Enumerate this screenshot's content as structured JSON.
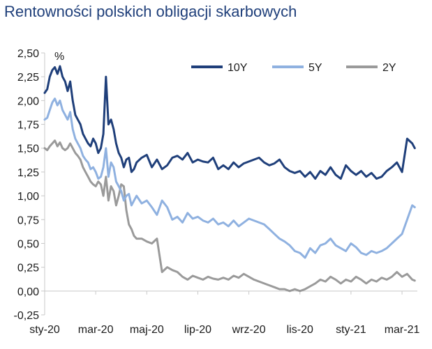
{
  "chart_data": {
    "type": "line",
    "title": "Rentowności polskich obligacji skarbowych",
    "unit": "%",
    "xlabel": "",
    "ylabel": "%",
    "ylim": [
      -0.25,
      2.5
    ],
    "yticks": [
      "2,50",
      "2,25",
      "2,00",
      "1,75",
      "1,50",
      "1,25",
      "1,00",
      "0,75",
      "0,50",
      "0,25",
      "0,00",
      "-0,25"
    ],
    "ytick_values": [
      2.5,
      2.25,
      2.0,
      1.75,
      1.5,
      1.25,
      1.0,
      0.75,
      0.5,
      0.25,
      0.0,
      -0.25
    ],
    "xticks": [
      "sty-20",
      "mar-20",
      "maj-20",
      "lip-20",
      "wrz-20",
      "lis-20",
      "sty-21",
      "mar-21"
    ],
    "xtick_positions": [
      0,
      2,
      4,
      6,
      8,
      10,
      12,
      14
    ],
    "xlim": [
      0,
      14.6
    ],
    "legend_position": "top-right",
    "grid": false,
    "series": [
      {
        "name": "10Y",
        "color": "#1f3f7a",
        "x": [
          0,
          0.1,
          0.2,
          0.3,
          0.4,
          0.5,
          0.6,
          0.7,
          0.8,
          0.9,
          1.0,
          1.1,
          1.2,
          1.3,
          1.4,
          1.5,
          1.6,
          1.7,
          1.8,
          1.9,
          2.0,
          2.1,
          2.2,
          2.3,
          2.4,
          2.5,
          2.6,
          2.7,
          2.8,
          2.9,
          3.0,
          3.1,
          3.2,
          3.3,
          3.4,
          3.5,
          3.6,
          3.8,
          4.0,
          4.2,
          4.4,
          4.6,
          4.8,
          5.0,
          5.2,
          5.4,
          5.6,
          5.8,
          6.0,
          6.2,
          6.4,
          6.6,
          6.8,
          7.0,
          7.2,
          7.4,
          7.6,
          7.8,
          8.0,
          8.2,
          8.4,
          8.6,
          8.8,
          9.0,
          9.2,
          9.4,
          9.6,
          9.8,
          10.0,
          10.2,
          10.4,
          10.6,
          10.8,
          11.0,
          11.2,
          11.4,
          11.6,
          11.8,
          12.0,
          12.2,
          12.4,
          12.6,
          12.8,
          13.0,
          13.2,
          13.4,
          13.6,
          13.8,
          14.0,
          14.2,
          14.4,
          14.5
        ],
        "values": [
          2.08,
          2.12,
          2.25,
          2.32,
          2.35,
          2.28,
          2.36,
          2.25,
          2.2,
          2.1,
          2.2,
          2.0,
          1.85,
          1.8,
          1.75,
          1.65,
          1.6,
          1.55,
          1.52,
          1.6,
          1.55,
          1.45,
          1.5,
          1.65,
          2.25,
          1.75,
          1.8,
          1.7,
          1.55,
          1.45,
          1.4,
          1.3,
          1.38,
          1.4,
          1.25,
          1.28,
          1.35,
          1.4,
          1.43,
          1.3,
          1.38,
          1.28,
          1.32,
          1.4,
          1.42,
          1.38,
          1.45,
          1.35,
          1.38,
          1.36,
          1.35,
          1.4,
          1.28,
          1.32,
          1.28,
          1.35,
          1.3,
          1.34,
          1.36,
          1.38,
          1.4,
          1.35,
          1.32,
          1.34,
          1.38,
          1.3,
          1.26,
          1.24,
          1.26,
          1.2,
          1.25,
          1.18,
          1.26,
          1.22,
          1.3,
          1.22,
          1.18,
          1.32,
          1.26,
          1.22,
          1.26,
          1.2,
          1.24,
          1.18,
          1.2,
          1.26,
          1.3,
          1.35,
          1.25,
          1.6,
          1.55,
          1.5
        ]
      },
      {
        "name": "5Y",
        "color": "#8fb1e0",
        "x": [
          0,
          0.1,
          0.2,
          0.3,
          0.4,
          0.5,
          0.6,
          0.7,
          0.8,
          0.9,
          1.0,
          1.1,
          1.2,
          1.3,
          1.4,
          1.5,
          1.6,
          1.7,
          1.8,
          1.9,
          2.0,
          2.1,
          2.2,
          2.3,
          2.4,
          2.5,
          2.6,
          2.7,
          2.8,
          2.9,
          3.0,
          3.1,
          3.2,
          3.3,
          3.4,
          3.5,
          3.6,
          3.8,
          4.0,
          4.2,
          4.4,
          4.6,
          4.8,
          5.0,
          5.2,
          5.4,
          5.6,
          5.8,
          6.0,
          6.2,
          6.4,
          6.6,
          6.8,
          7.0,
          7.2,
          7.4,
          7.6,
          7.8,
          8.0,
          8.2,
          8.4,
          8.6,
          8.8,
          9.0,
          9.2,
          9.4,
          9.6,
          9.8,
          10.0,
          10.2,
          10.4,
          10.6,
          10.8,
          11.0,
          11.2,
          11.4,
          11.6,
          11.8,
          12.0,
          12.2,
          12.4,
          12.6,
          12.8,
          13.0,
          13.2,
          13.4,
          13.6,
          13.8,
          14.0,
          14.2,
          14.4,
          14.5
        ],
        "values": [
          1.8,
          1.82,
          1.9,
          1.98,
          2.02,
          1.95,
          2.0,
          1.9,
          1.85,
          1.8,
          1.88,
          1.7,
          1.6,
          1.55,
          1.5,
          1.42,
          1.38,
          1.35,
          1.28,
          1.3,
          1.25,
          1.18,
          1.2,
          1.3,
          1.5,
          1.2,
          1.35,
          1.3,
          1.15,
          1.1,
          1.05,
          0.95,
          1.0,
          1.02,
          0.9,
          0.95,
          1.0,
          0.92,
          0.95,
          0.88,
          0.8,
          0.95,
          0.88,
          0.75,
          0.78,
          0.72,
          0.82,
          0.76,
          0.78,
          0.74,
          0.72,
          0.76,
          0.7,
          0.72,
          0.68,
          0.74,
          0.68,
          0.72,
          0.76,
          0.74,
          0.72,
          0.7,
          0.65,
          0.6,
          0.55,
          0.52,
          0.48,
          0.42,
          0.4,
          0.35,
          0.45,
          0.4,
          0.48,
          0.5,
          0.55,
          0.48,
          0.45,
          0.42,
          0.5,
          0.46,
          0.4,
          0.38,
          0.42,
          0.4,
          0.42,
          0.45,
          0.5,
          0.55,
          0.6,
          0.75,
          0.9,
          0.88
        ]
      },
      {
        "name": "2Y",
        "color": "#9a9a9a",
        "x": [
          0,
          0.1,
          0.2,
          0.3,
          0.4,
          0.5,
          0.6,
          0.7,
          0.8,
          0.9,
          1.0,
          1.1,
          1.2,
          1.3,
          1.4,
          1.5,
          1.6,
          1.7,
          1.8,
          1.9,
          2.0,
          2.1,
          2.2,
          2.3,
          2.4,
          2.5,
          2.6,
          2.7,
          2.8,
          2.9,
          3.0,
          3.1,
          3.2,
          3.3,
          3.4,
          3.5,
          3.6,
          3.8,
          4.0,
          4.2,
          4.4,
          4.6,
          4.8,
          5.0,
          5.2,
          5.4,
          5.6,
          5.8,
          6.0,
          6.2,
          6.4,
          6.6,
          6.8,
          7.0,
          7.2,
          7.4,
          7.6,
          7.8,
          8.0,
          8.2,
          8.4,
          8.6,
          8.8,
          9.0,
          9.2,
          9.4,
          9.6,
          9.8,
          10.0,
          10.2,
          10.4,
          10.6,
          10.8,
          11.0,
          11.2,
          11.4,
          11.6,
          11.8,
          12.0,
          12.2,
          12.4,
          12.6,
          12.8,
          13.0,
          13.2,
          13.4,
          13.6,
          13.8,
          14.0,
          14.2,
          14.4,
          14.5
        ],
        "values": [
          1.5,
          1.48,
          1.52,
          1.55,
          1.58,
          1.52,
          1.56,
          1.5,
          1.48,
          1.5,
          1.55,
          1.5,
          1.45,
          1.42,
          1.38,
          1.3,
          1.25,
          1.2,
          1.15,
          1.12,
          1.1,
          1.15,
          1.12,
          1.0,
          1.2,
          0.95,
          1.1,
          1.05,
          0.9,
          1.0,
          1.12,
          1.1,
          0.85,
          0.7,
          0.65,
          0.58,
          0.55,
          0.55,
          0.52,
          0.5,
          0.55,
          0.2,
          0.25,
          0.22,
          0.2,
          0.15,
          0.12,
          0.16,
          0.14,
          0.12,
          0.15,
          0.13,
          0.12,
          0.14,
          0.12,
          0.16,
          0.14,
          0.18,
          0.15,
          0.12,
          0.1,
          0.08,
          0.06,
          0.04,
          0.02,
          0.02,
          0.0,
          0.02,
          0.0,
          0.02,
          0.05,
          0.08,
          0.12,
          0.1,
          0.15,
          0.12,
          0.08,
          0.12,
          0.1,
          0.15,
          0.12,
          0.08,
          0.12,
          0.1,
          0.14,
          0.12,
          0.15,
          0.2,
          0.15,
          0.18,
          0.12,
          0.11
        ]
      }
    ]
  }
}
